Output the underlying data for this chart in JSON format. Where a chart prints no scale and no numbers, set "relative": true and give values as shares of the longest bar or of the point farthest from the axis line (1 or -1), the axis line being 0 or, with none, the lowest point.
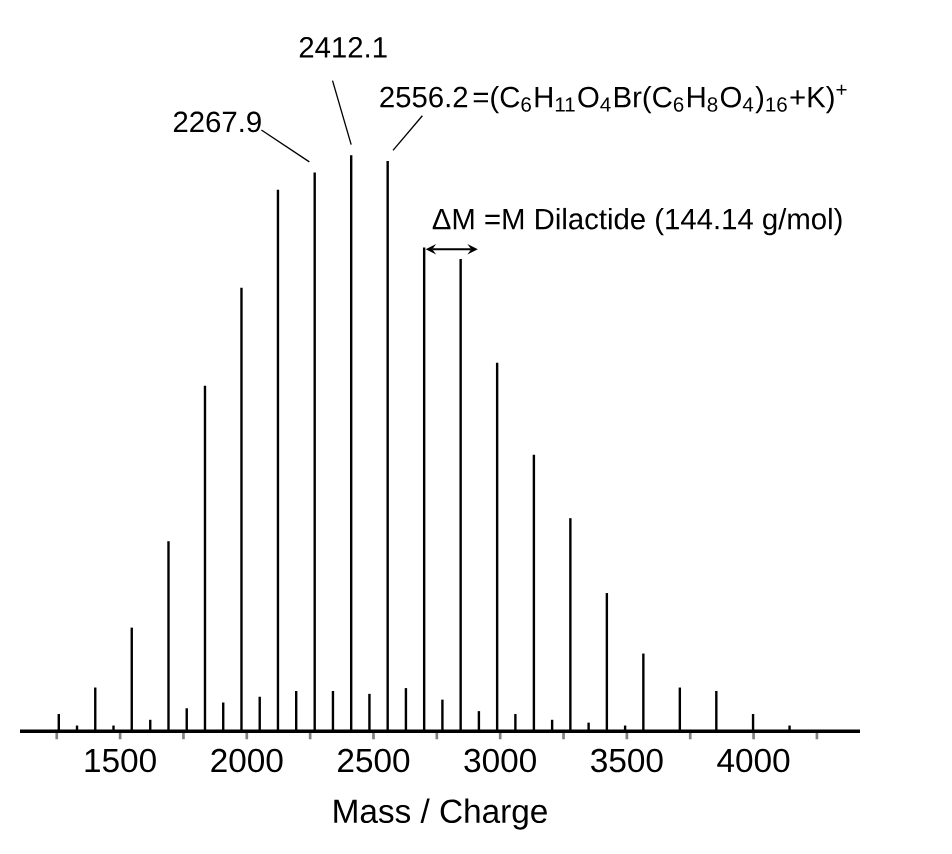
{
  "chart_data": {
    "type": "bar",
    "relative": true,
    "xlabel": "Mass / Charge",
    "color": "#000000",
    "x": [
      1258,
      1330,
      1402,
      1474,
      1546,
      1619,
      1691,
      1763,
      1835,
      1907,
      1979,
      2051,
      2123,
      2195,
      2268,
      2340,
      2412,
      2484,
      2556,
      2628,
      2700,
      2772,
      2844,
      2916,
      2988,
      3060,
      3133,
      3205,
      3277,
      3349,
      3421,
      3493,
      3565,
      3709,
      3853,
      3998,
      4142
    ],
    "values": [
      0.03,
      0.01,
      0.076,
      0.01,
      0.18,
      0.02,
      0.33,
      0.04,
      0.6,
      0.05,
      0.77,
      0.06,
      0.94,
      0.07,
      0.97,
      0.07,
      1.0,
      0.065,
      0.99,
      0.075,
      0.84,
      0.055,
      0.82,
      0.035,
      0.64,
      0.03,
      0.48,
      0.02,
      0.37,
      0.015,
      0.24,
      0.01,
      0.135,
      0.076,
      0.07,
      0.03,
      0.01
    ],
    "xlim": [
      1105,
      4420
    ],
    "xticks": [
      {
        "value": 1250,
        "label": null
      },
      1500,
      {
        "value": 1750,
        "label": null
      },
      2000,
      {
        "value": 2250,
        "label": null
      },
      2500,
      {
        "value": 2750,
        "label": null
      },
      3000,
      {
        "value": 3250,
        "label": null
      },
      3500,
      {
        "value": 3750,
        "label": null
      },
      4000,
      {
        "value": 4250,
        "label": null
      }
    ],
    "annotations": [
      {
        "text": "2267.9",
        "x": 2268,
        "y": 0.97
      },
      {
        "text": "2412.1",
        "x": 2412,
        "y": 1.0
      },
      {
        "text": "2556.2",
        "x": 2556,
        "y": 0.99
      },
      "=(C$_{6}$H$_{11}$O$_{4}$Br(C$_{6}$H$_{8}$O$_{4}$)$_{16}$+K)$^{+}$",
      "ΔM =M Dilactide (144.14 g/mol)"
    ]
  }
}
